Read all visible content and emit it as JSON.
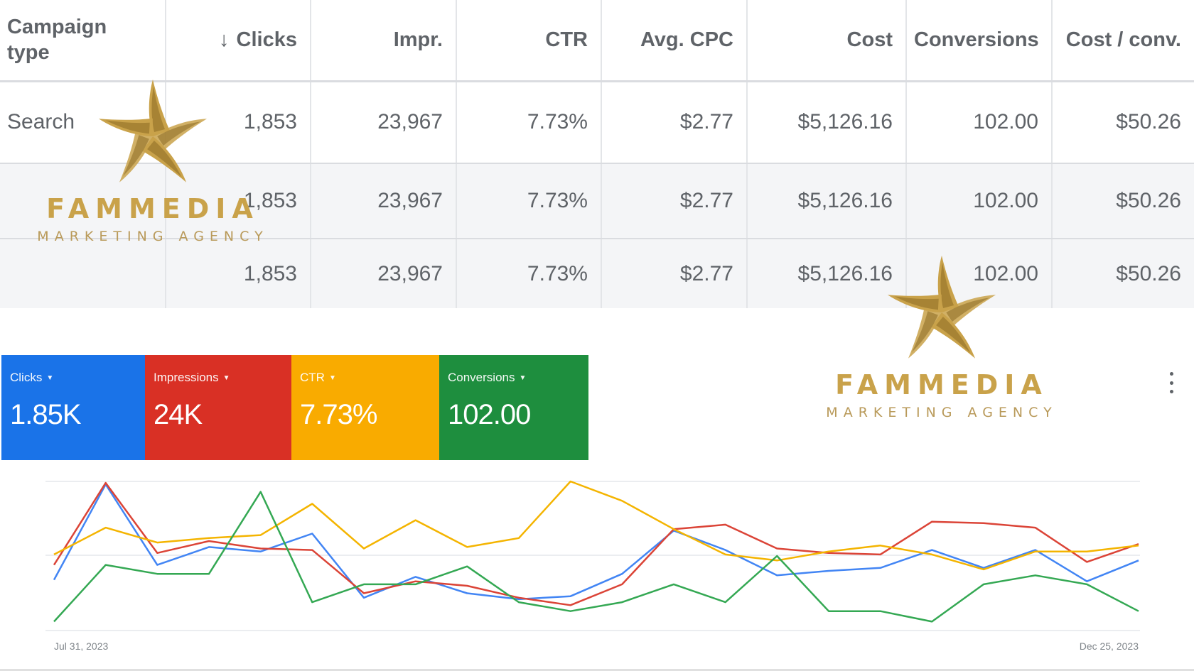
{
  "table": {
    "headers": [
      {
        "label": "Campaign type"
      },
      {
        "label": "Clicks",
        "sort_icon": "arrow-down-icon"
      },
      {
        "label": "Impr."
      },
      {
        "label": "CTR"
      },
      {
        "label": "Avg. CPC"
      },
      {
        "label": "Cost"
      },
      {
        "label": "Conversions"
      },
      {
        "label": "Cost / conv."
      }
    ],
    "rows": [
      {
        "campaign_type": "Search",
        "clicks": "1,853",
        "impr": "23,967",
        "ctr": "7.73%",
        "avg_cpc": "$2.77",
        "cost": "$5,126.16",
        "conversions": "102.00",
        "cost_conv": "$50.26"
      },
      {
        "campaign_type": "",
        "clicks": "1,853",
        "impr": "23,967",
        "ctr": "7.73%",
        "avg_cpc": "$2.77",
        "cost": "$5,126.16",
        "conversions": "102.00",
        "cost_conv": "$50.26"
      },
      {
        "campaign_type": "",
        "clicks": "1,853",
        "impr": "23,967",
        "ctr": "7.73%",
        "avg_cpc": "$2.77",
        "cost": "$5,126.16",
        "conversions": "102.00",
        "cost_conv": "$50.26"
      }
    ]
  },
  "scorecards": [
    {
      "label": "Clicks",
      "value": "1.85K",
      "color": "#1a73e8"
    },
    {
      "label": "Impressions",
      "value": "24K",
      "color": "#d93025"
    },
    {
      "label": "CTR",
      "value": "7.73%",
      "color": "#f9ab00"
    },
    {
      "label": "Conversions",
      "value": "102.00",
      "color": "#1e8e3e"
    }
  ],
  "more_icon": "more-vert-icon",
  "watermark": {
    "name": "FAMMEDIA",
    "subtitle": "MARKETING AGENCY",
    "logo": "star-swirl-logo",
    "color": "#c9a24a"
  },
  "chart_data": {
    "type": "line",
    "x_start_label": "Jul 31, 2023",
    "x_end_label": "Dec 25, 2023",
    "ylim": [
      0,
      1
    ],
    "grid": true,
    "series": [
      {
        "name": "Clicks",
        "color": "#4285f4",
        "values": [
          0.34,
          0.98,
          0.44,
          0.56,
          0.53,
          0.65,
          0.22,
          0.36,
          0.25,
          0.21,
          0.23,
          0.38,
          0.67,
          0.54,
          0.37,
          0.4,
          0.42,
          0.54,
          0.42,
          0.54,
          0.33,
          0.47
        ]
      },
      {
        "name": "Impressions",
        "color": "#db4437",
        "values": [
          0.44,
          0.99,
          0.52,
          0.6,
          0.55,
          0.54,
          0.25,
          0.33,
          0.3,
          0.22,
          0.17,
          0.31,
          0.68,
          0.71,
          0.55,
          0.52,
          0.51,
          0.73,
          0.72,
          0.69,
          0.46,
          0.58
        ]
      },
      {
        "name": "CTR",
        "color": "#f4b400",
        "values": [
          0.51,
          0.69,
          0.59,
          0.62,
          0.64,
          0.85,
          0.55,
          0.74,
          0.56,
          0.62,
          1.0,
          0.87,
          0.68,
          0.51,
          0.47,
          0.53,
          0.57,
          0.51,
          0.41,
          0.53,
          0.53,
          0.57
        ]
      },
      {
        "name": "Conversions",
        "color": "#34a853",
        "values": [
          0.06,
          0.44,
          0.38,
          0.38,
          0.93,
          0.19,
          0.31,
          0.31,
          0.43,
          0.19,
          0.13,
          0.19,
          0.31,
          0.19,
          0.5,
          0.13,
          0.13,
          0.06,
          0.31,
          0.37,
          0.31,
          0.13
        ]
      }
    ]
  }
}
